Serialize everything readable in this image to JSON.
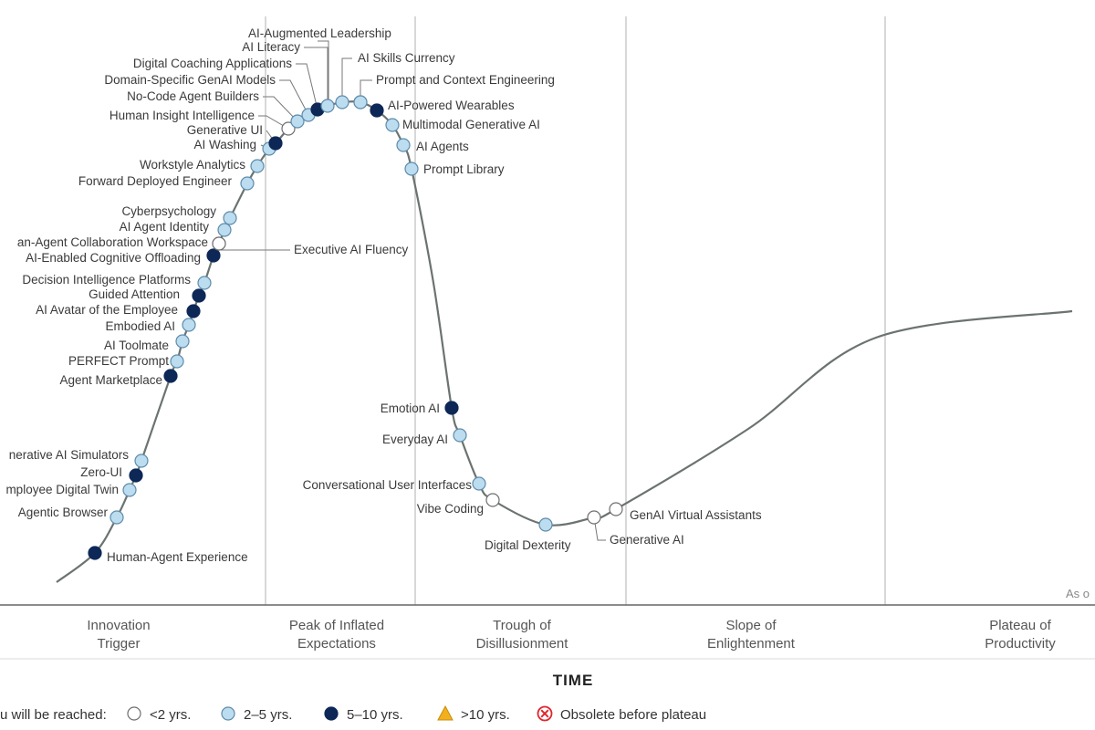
{
  "chart_data": {
    "type": "scatter",
    "chart_kind": "hype-cycle",
    "x_axis_label": "TIME",
    "as_of_note": "As o",
    "phases": [
      "Innovation Trigger",
      "Peak of Inflated Expectations",
      "Trough of Disillusionment",
      "Slope of Enlightenment",
      "Plateau of Productivity"
    ],
    "legend": {
      "prefix": "u will be reached:",
      "items": [
        {
          "key": "lt2",
          "label": "<2 yrs.",
          "shape": "circle",
          "color": "#ffffff"
        },
        {
          "key": "2to5",
          "label": "2–5 yrs.",
          "shape": "circle",
          "color": "#bcdcef"
        },
        {
          "key": "5to10",
          "label": "5–10 yrs.",
          "shape": "circle",
          "color": "#0d2857"
        },
        {
          "key": "gt10",
          "label": ">10 yrs.",
          "shape": "triangle",
          "color": "#f2b01e"
        },
        {
          "key": "obsolete",
          "label": "Obsolete before plateau",
          "shape": "x-circle",
          "color": "#e0252d"
        }
      ]
    },
    "points": [
      {
        "name": "Human-Agent Experience",
        "t": 0.09,
        "cat": "5to10"
      },
      {
        "name": "Agentic Browser",
        "t": 0.145,
        "cat": "2to5"
      },
      {
        "name": "mployee Digital Twin",
        "t": 0.175,
        "cat": "2to5"
      },
      {
        "name": "Zero-UI",
        "t": 0.195,
        "cat": "5to10"
      },
      {
        "name": "nerative AI Simulators",
        "t": 0.21,
        "cat": "2to5"
      },
      {
        "name": "Agent Marketplace",
        "t": 0.337,
        "cat": "5to10"
      },
      {
        "name": "PERFECT Prompt",
        "t": 0.36,
        "cat": "2to5"
      },
      {
        "name": "AI Toolmate",
        "t": 0.38,
        "cat": "2to5"
      },
      {
        "name": "Embodied AI",
        "t": 0.4,
        "cat": "2to5"
      },
      {
        "name": "AI Avatar of the Employee",
        "t": 0.42,
        "cat": "5to10"
      },
      {
        "name": "Guided Attention",
        "t": 0.44,
        "cat": "5to10"
      },
      {
        "name": "Decision Intelligence Platforms",
        "t": 0.458,
        "cat": "2to5"
      },
      {
        "name": "AI-Enabled Cognitive Offloading",
        "t": 0.49,
        "cat": "5to10"
      },
      {
        "name": "an-Agent Collaboration Workspace",
        "t": 0.508,
        "cat": "lt2"
      },
      {
        "name": "AI Agent Identity",
        "t": 0.527,
        "cat": "2to5"
      },
      {
        "name": "Cyberpsychology",
        "t": 0.545,
        "cat": "2to5"
      },
      {
        "name": "Forward Deployed Engineer",
        "t": 0.6,
        "cat": "2to5"
      },
      {
        "name": "Workstyle Analytics",
        "t": 0.637,
        "cat": "2to5"
      },
      {
        "name": "AI Washing",
        "t": 0.663,
        "cat": "2to5"
      },
      {
        "name": "Generative UI",
        "t": 0.68,
        "cat": "5to10"
      },
      {
        "name": "Human Insight Intelligence",
        "t": 0.697,
        "cat": "lt2"
      },
      {
        "name": "No-Code Agent Builders",
        "t": 0.725,
        "cat": "2to5"
      },
      {
        "name": "Domain-Specific GenAI Models",
        "t": 0.75,
        "cat": "2to5"
      },
      {
        "name": "Digital Coaching Applications",
        "t": 0.775,
        "cat": "5to10"
      },
      {
        "name": "AI Literacy",
        "t": 0.81,
        "cat": "2to5"
      },
      {
        "name": "AI-Augmented Leadership",
        "t": 0.86,
        "cat": "2to5"
      },
      {
        "name": "AI Skills Currency",
        "t": 0.925,
        "cat": "2to5"
      },
      {
        "name": "Prompt and Context Engineering",
        "t": 0.925,
        "cat": "2to5"
      },
      {
        "name": "AI-Powered Wearables",
        "t": 1.015,
        "cat": "5to10"
      },
      {
        "name": "Multimodal Generative AI",
        "t": 1.05,
        "cat": "2to5"
      },
      {
        "name": "AI Agents",
        "t": 1.1,
        "cat": "2to5"
      },
      {
        "name": "Prompt Library",
        "t": 1.14,
        "cat": "2to5"
      },
      {
        "name": "Executive AI Fluency",
        "t": 0.508,
        "cat": "lt2"
      },
      {
        "name": "Emotion AI",
        "t": 1.9,
        "cat": "5to10"
      },
      {
        "name": "Everyday AI",
        "t": 2.03,
        "cat": "2to5"
      },
      {
        "name": "Conversational User Interfaces",
        "t": 2.28,
        "cat": "2to5"
      },
      {
        "name": "Vibe Coding",
        "t": 2.4,
        "cat": "lt2"
      },
      {
        "name": "Digital Dexterity",
        "t": 2.95,
        "cat": "2to5"
      },
      {
        "name": "Generative AI",
        "t": 3.45,
        "cat": "lt2"
      },
      {
        "name": "GenAI Virtual Assistants",
        "t": 3.55,
        "cat": "lt2"
      }
    ]
  }
}
